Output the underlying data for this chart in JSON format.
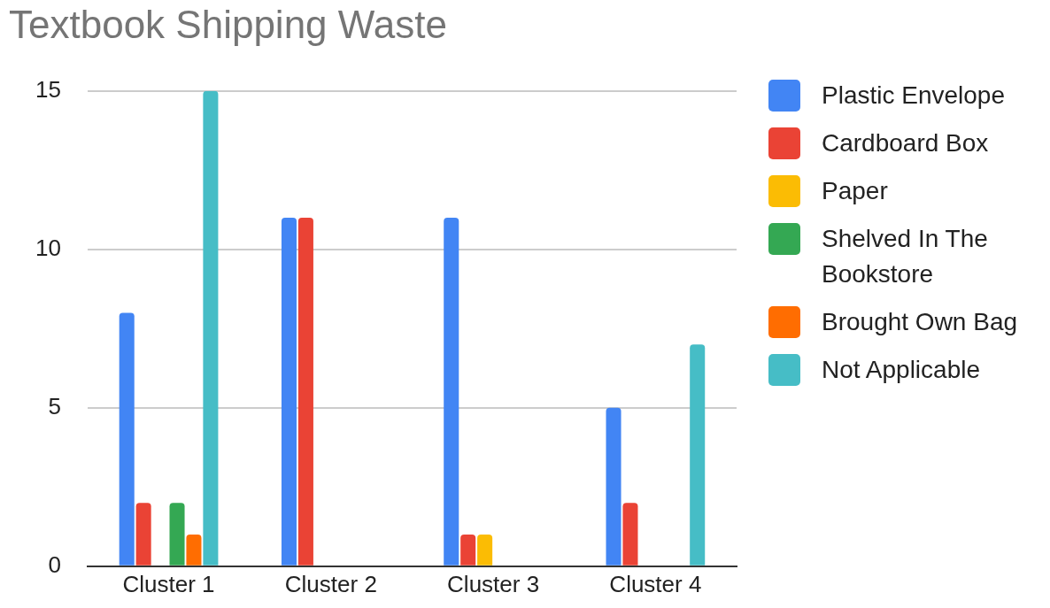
{
  "chart_data": {
    "type": "bar",
    "title": "Textbook Shipping Waste",
    "categories": [
      "Cluster 1",
      "Cluster 2",
      "Cluster 3",
      "Cluster 4"
    ],
    "series": [
      {
        "name": "Plastic Envelope",
        "color": "#4285f4",
        "values": [
          8,
          11,
          11,
          5
        ]
      },
      {
        "name": "Cardboard Box",
        "color": "#ea4335",
        "values": [
          2,
          11,
          1,
          2
        ]
      },
      {
        "name": "Paper",
        "color": "#fbbc04",
        "values": [
          0,
          0,
          1,
          0
        ]
      },
      {
        "name": "Shelved In The Bookstore",
        "color": "#34a853",
        "values": [
          2,
          0,
          0,
          0
        ]
      },
      {
        "name": "Brought Own Bag",
        "color": "#ff6d01",
        "values": [
          1,
          0,
          0,
          0
        ]
      },
      {
        "name": "Not Applicable",
        "color": "#46bdc6",
        "values": [
          15,
          0,
          0,
          7
        ]
      }
    ],
    "ylim": [
      0,
      15
    ],
    "yticks": [
      0,
      5,
      10,
      15
    ],
    "grid": "y",
    "legend": "right"
  }
}
